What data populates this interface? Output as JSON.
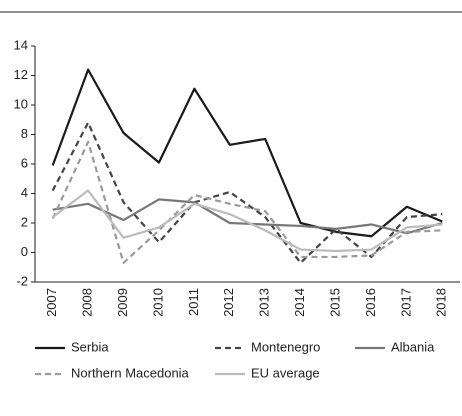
{
  "chart_data": {
    "type": "line",
    "categories": [
      "2007",
      "2008",
      "2009",
      "2010",
      "2011",
      "2012",
      "2013",
      "2014",
      "2015",
      "2016",
      "2017",
      "2018"
    ],
    "series": [
      {
        "name": "Serbia",
        "color": "#1a1a1a",
        "dashed": false,
        "values": [
          5.9,
          12.4,
          8.1,
          6.1,
          11.1,
          7.3,
          7.7,
          2.0,
          1.4,
          1.1,
          3.1,
          2.1
        ]
      },
      {
        "name": "Montenegro",
        "color": "#444444",
        "dashed": true,
        "values": [
          4.2,
          8.8,
          3.4,
          0.7,
          3.4,
          4.1,
          2.4,
          -0.7,
          1.6,
          -0.3,
          2.4,
          2.6
        ]
      },
      {
        "name": "Albania",
        "color": "#777777",
        "dashed": false,
        "values": [
          2.9,
          3.3,
          2.2,
          3.6,
          3.4,
          2.0,
          1.9,
          1.8,
          1.6,
          1.9,
          1.3,
          2.0
        ]
      },
      {
        "name": "Northern Macedonia",
        "color": "#9a9a9a",
        "dashed": true,
        "values": [
          2.3,
          7.5,
          -0.7,
          1.5,
          3.9,
          3.3,
          2.8,
          -0.3,
          -0.3,
          -0.2,
          1.4,
          1.5
        ]
      },
      {
        "name": "EU average",
        "color": "#bbbbbb",
        "dashed": false,
        "values": [
          2.4,
          4.2,
          1.0,
          1.7,
          3.3,
          2.6,
          1.5,
          0.2,
          0.1,
          0.2,
          1.7,
          1.9
        ]
      }
    ],
    "ylim": [
      -2,
      14
    ],
    "yticks": [
      -2,
      0,
      2,
      4,
      6,
      8,
      10,
      12,
      14
    ],
    "grid": false
  }
}
